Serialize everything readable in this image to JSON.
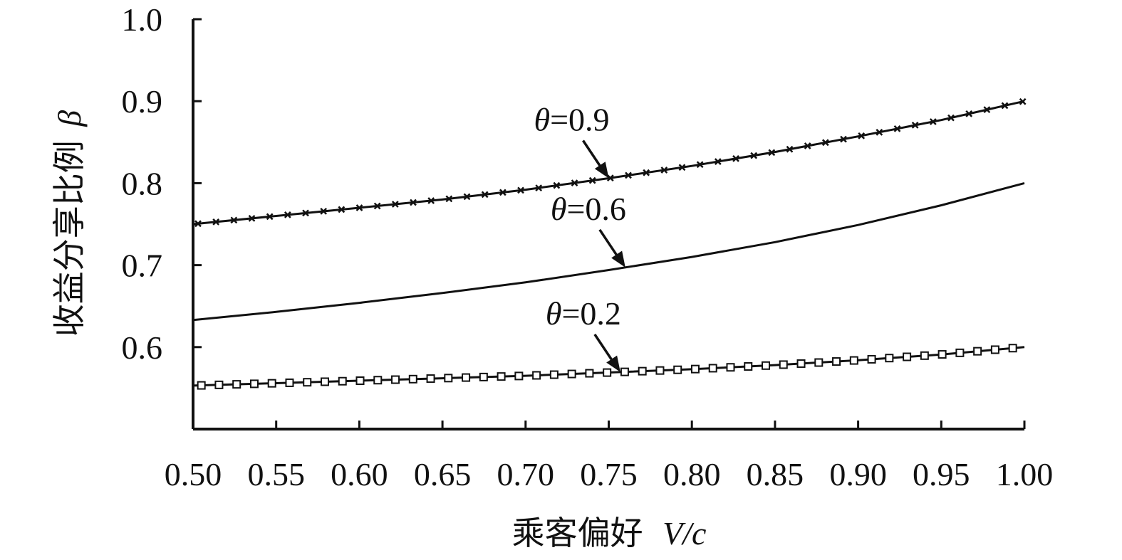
{
  "chart_data": {
    "type": "line",
    "xlabel_cn": "乘客偏好",
    "xlabel_var": "V/c",
    "ylabel_cn": "收益分享比例",
    "ylabel_var": "β",
    "xlim": [
      0.5,
      1.0
    ],
    "ylim": [
      0.5,
      1.0
    ],
    "x_ticks": [
      "0.50",
      "0.55",
      "0.60",
      "0.65",
      "0.70",
      "0.75",
      "0.80",
      "0.85",
      "0.90",
      "0.95",
      "1.00"
    ],
    "y_ticks": [
      "0.6",
      "0.7",
      "0.8",
      "0.9",
      "1.0"
    ],
    "legend": "none",
    "grid": false,
    "series": [
      {
        "name": "θ=0.9",
        "marker": "x",
        "label_prefix": "θ",
        "label_value": "=0.9",
        "annotation_x": 0.75,
        "x": [
          0.5,
          0.55,
          0.6,
          0.65,
          0.7,
          0.75,
          0.8,
          0.85,
          0.9,
          0.95,
          1.0
        ],
        "values": [
          0.75,
          0.76,
          0.77,
          0.78,
          0.792,
          0.806,
          0.821,
          0.838,
          0.857,
          0.877,
          0.9
        ]
      },
      {
        "name": "θ=0.6",
        "marker": "none",
        "label_prefix": "θ",
        "label_value": "=0.6",
        "annotation_x": 0.76,
        "x": [
          0.5,
          0.55,
          0.6,
          0.65,
          0.7,
          0.75,
          0.8,
          0.85,
          0.9,
          0.95,
          1.0
        ],
        "values": [
          0.633,
          0.643,
          0.654,
          0.666,
          0.679,
          0.694,
          0.71,
          0.728,
          0.749,
          0.773,
          0.8
        ]
      },
      {
        "name": "θ=0.2",
        "marker": "square",
        "label_prefix": "θ",
        "label_value": "=0.2",
        "annotation_x": 0.757,
        "x": [
          0.5,
          0.55,
          0.6,
          0.65,
          0.7,
          0.75,
          0.8,
          0.85,
          0.9,
          0.95,
          1.0
        ],
        "values": [
          0.553,
          0.556,
          0.559,
          0.562,
          0.565,
          0.569,
          0.573,
          0.578,
          0.584,
          0.591,
          0.6
        ]
      }
    ]
  }
}
